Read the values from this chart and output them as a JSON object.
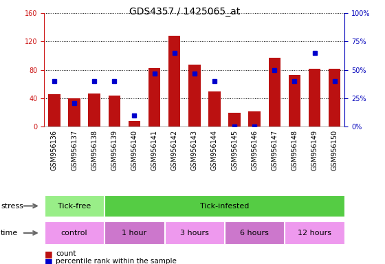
{
  "title": "GDS4357 / 1425065_at",
  "samples": [
    "GSM956136",
    "GSM956137",
    "GSM956138",
    "GSM956139",
    "GSM956140",
    "GSM956141",
    "GSM956142",
    "GSM956143",
    "GSM956144",
    "GSM956145",
    "GSM956146",
    "GSM956147",
    "GSM956148",
    "GSM956149",
    "GSM956150"
  ],
  "counts": [
    46,
    40,
    47,
    44,
    8,
    83,
    128,
    88,
    50,
    20,
    22,
    97,
    73,
    82,
    82
  ],
  "percentile_ranks": [
    40,
    21,
    40,
    40,
    10,
    47,
    65,
    47,
    40,
    0,
    0,
    50,
    40,
    65,
    40
  ],
  "ylim_left": [
    0,
    160
  ],
  "ylim_right": [
    0,
    100
  ],
  "yticks_left": [
    0,
    40,
    80,
    120,
    160
  ],
  "yticks_right": [
    0,
    25,
    50,
    75,
    100
  ],
  "ytick_labels_right": [
    "0%",
    "25%",
    "50%",
    "75%",
    "100%"
  ],
  "bar_color": "#BB1111",
  "marker_color": "#0000CC",
  "plot_bg": "#FFFFFF",
  "xtick_bg": "#CCCCCC",
  "stress_groups": [
    {
      "label": "Tick-free",
      "start": 0,
      "end": 3,
      "color": "#99EE88"
    },
    {
      "label": "Tick-infested",
      "start": 3,
      "end": 15,
      "color": "#55CC44"
    }
  ],
  "time_groups": [
    {
      "label": "control",
      "start": 0,
      "end": 3,
      "color": "#EE99EE"
    },
    {
      "label": "1 hour",
      "start": 3,
      "end": 6,
      "color": "#CC77CC"
    },
    {
      "label": "3 hours",
      "start": 6,
      "end": 9,
      "color": "#EE99EE"
    },
    {
      "label": "6 hours",
      "start": 9,
      "end": 12,
      "color": "#CC77CC"
    },
    {
      "label": "12 hours",
      "start": 12,
      "end": 15,
      "color": "#EE99EE"
    }
  ],
  "stress_row_label": "stress",
  "time_row_label": "time",
  "legend_count_label": "count",
  "legend_pct_label": "percentile rank within the sample",
  "left_axis_color": "#CC1111",
  "right_axis_color": "#0000BB",
  "grid_color": "#000000",
  "title_fontsize": 10,
  "tick_fontsize": 7,
  "label_fontsize": 8,
  "row_label_fontsize": 8
}
